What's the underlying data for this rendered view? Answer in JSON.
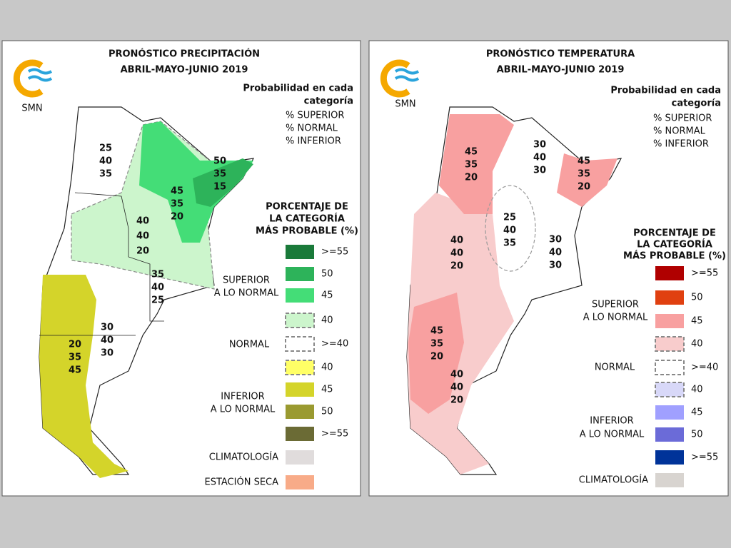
{
  "panels": [
    {
      "title": [
        "PRONÓSTICO PRECIPITACIÓN",
        "ABRIL-MAYO-JUNIO 2019"
      ],
      "logo": "SMN",
      "key_title": [
        "Probabilidad en cada",
        "categoría"
      ],
      "key_lines": [
        "% SUPERIOR",
        "% NORMAL",
        "% INFERIOR"
      ],
      "scale_title": [
        "PORCENTAJE DE",
        "LA CATEGORÍA",
        "MÁS PROBABLE (%)"
      ],
      "legend": [
        {
          "label": ">=55",
          "color": "#1a7a3a"
        },
        {
          "label": "50",
          "color": "#2db35a"
        },
        {
          "label": "45",
          "color": "#44dd77"
        },
        {
          "label": "40",
          "color": "#ccf5cc",
          "dashed": true
        },
        {
          "label": ">=40",
          "color": "#ffffff",
          "dashed": true
        },
        {
          "label": "40",
          "color": "#ffff66",
          "dashed": true
        },
        {
          "label": "45",
          "color": "#d4d42a"
        },
        {
          "label": "50",
          "color": "#9a9a30"
        },
        {
          "label": ">=55",
          "color": "#6b6b35"
        },
        {
          "label": "CLIMATOLOGÍA",
          "color": "#e0dcdc"
        },
        {
          "label": "ESTACIÓN SECA",
          "color": "#f8ab88"
        }
      ],
      "groups": [
        [
          "SUPERIOR",
          "A LO NORMAL"
        ],
        [
          "NORMAL"
        ],
        [
          "INFERIOR",
          "A LO NORMAL"
        ]
      ],
      "regions": [
        [
          25,
          40,
          35
        ],
        [
          50,
          35,
          15
        ],
        [
          45,
          35,
          20
        ],
        [
          40,
          40,
          20
        ],
        [
          35,
          40,
          25
        ],
        [
          30,
          40,
          30
        ],
        [
          20,
          35,
          45
        ]
      ]
    },
    {
      "title": [
        "PRONÓSTICO TEMPERATURA",
        "ABRIL-MAYO-JUNIO 2019"
      ],
      "logo": "SMN",
      "key_title": [
        "Probabilidad en cada",
        "categoría"
      ],
      "key_lines": [
        "% SUPERIOR",
        "% NORMAL",
        "% INFERIOR"
      ],
      "scale_title": [
        "PORCENTAJE DE",
        "LA CATEGORÍA",
        "MÁS PROBABLE (%)"
      ],
      "legend": [
        {
          "label": ">=55",
          "color": "#b00000"
        },
        {
          "label": "50",
          "color": "#e04010"
        },
        {
          "label": "45",
          "color": "#f8a0a0"
        },
        {
          "label": "40",
          "color": "#f8cccc",
          "dashed": true
        },
        {
          "label": ">=40",
          "color": "#ffffff",
          "dashed": true
        },
        {
          "label": "40",
          "color": "#d8d8f8",
          "dashed": true
        },
        {
          "label": "45",
          "color": "#a0a0ff"
        },
        {
          "label": "50",
          "color": "#6b6bd8"
        },
        {
          "label": ">=55",
          "color": "#003399"
        },
        {
          "label": "CLIMATOLOGÍA",
          "color": "#d8d4d0"
        }
      ],
      "groups": [
        [
          "SUPERIOR",
          "A LO NORMAL"
        ],
        [
          "NORMAL"
        ],
        [
          "INFERIOR",
          "A LO NORMAL"
        ]
      ],
      "regions": [
        [
          45,
          35,
          20
        ],
        [
          30,
          40,
          30
        ],
        [
          45,
          35,
          20
        ],
        [
          25,
          40,
          35
        ],
        [
          40,
          40,
          20
        ],
        [
          30,
          40,
          30
        ],
        [
          45,
          35,
          20
        ],
        [
          40,
          40,
          20
        ]
      ]
    }
  ]
}
